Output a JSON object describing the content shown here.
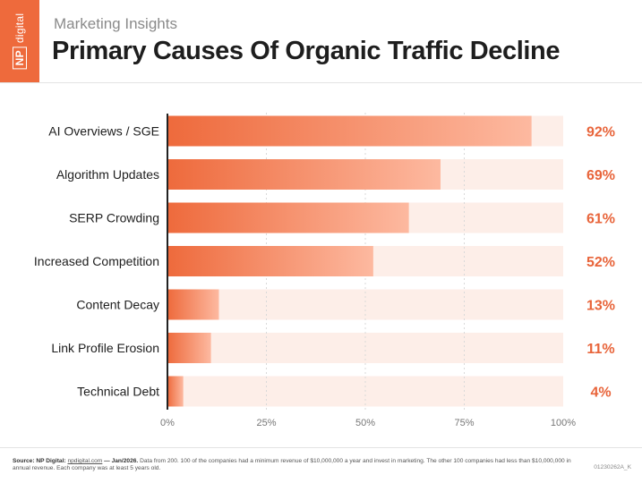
{
  "brand": {
    "text": "NP digital",
    "box": "NP",
    "name": "digital"
  },
  "header": {
    "supertitle": "Marketing Insights",
    "title": "Primary Causes Of Organic Traffic Decline"
  },
  "chart_data": {
    "type": "bar",
    "orientation": "horizontal",
    "title": "Primary Causes Of Organic Traffic Decline",
    "categories": [
      "AI Overviews / SGE",
      "Algorithm Updates",
      "SERP Crowding",
      "Increased Competition",
      "Content Decay",
      "Link Profile Erosion",
      "Technical Debt"
    ],
    "values": [
      92,
      69,
      61,
      52,
      13,
      11,
      4
    ],
    "value_labels": [
      "92%",
      "69%",
      "61%",
      "52%",
      "13%",
      "11%",
      "4%"
    ],
    "xlim": [
      0,
      100
    ],
    "x_ticks": [
      0,
      25,
      50,
      75,
      100
    ],
    "x_tick_labels": [
      "0%",
      "25%",
      "50%",
      "75%",
      "100%"
    ],
    "grid": true,
    "colors": {
      "bar_start": "#ee6a3c",
      "bar_end": "#fdb9a0",
      "track": "#fdeee8",
      "value_label": "#e8643a",
      "axis": "#222222",
      "grid": "#d9d9d9"
    }
  },
  "footer": {
    "source_label": "Source: NP Digital:",
    "source_link": "npdigital.com",
    "source_date": " — Jan/2026.",
    "source_note": " Data from 200. 100 of the companies had a minimum revenue of $10,000,000 a year and invest in marketing. The other 100 companies had less than $10,000,000 in annual revenue. Each company was at least 5 years old.",
    "code": "01230262A_K"
  }
}
